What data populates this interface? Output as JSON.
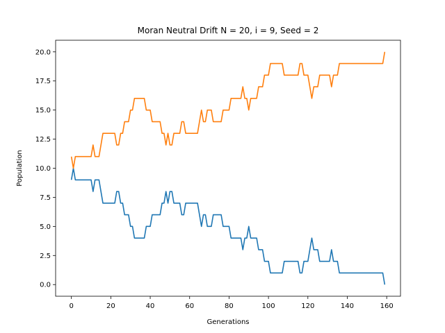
{
  "chart_data": {
    "type": "line",
    "title": "Moran Neutral Drift N = 20, i = 9, Seed = 2",
    "xlabel": "Generations",
    "ylabel": "Population",
    "xlim": [
      -8,
      167
    ],
    "ylim": [
      -1,
      21
    ],
    "xticks": [
      0,
      20,
      40,
      60,
      80,
      100,
      120,
      140,
      160
    ],
    "yticks": [
      0.0,
      2.5,
      5.0,
      7.5,
      10.0,
      12.5,
      15.0,
      17.5,
      20.0
    ],
    "xtick_labels": [
      "0",
      "20",
      "40",
      "60",
      "80",
      "100",
      "120",
      "140",
      "160"
    ],
    "ytick_labels": [
      "0.0",
      "2.5",
      "5.0",
      "7.5",
      "10.0",
      "12.5",
      "15.0",
      "17.5",
      "20.0"
    ],
    "grid": false,
    "series": [
      {
        "color": "#1f77b4",
        "points": [
          [
            0,
            9
          ],
          [
            1,
            10
          ],
          [
            2,
            9
          ],
          [
            10,
            9
          ],
          [
            11,
            8
          ],
          [
            12,
            9
          ],
          [
            14,
            9
          ],
          [
            16,
            7
          ],
          [
            22,
            7
          ],
          [
            23,
            8
          ],
          [
            24,
            8
          ],
          [
            25,
            7
          ],
          [
            26,
            7
          ],
          [
            27,
            6
          ],
          [
            29,
            6
          ],
          [
            30,
            5
          ],
          [
            31,
            5
          ],
          [
            32,
            4
          ],
          [
            37,
            4
          ],
          [
            38,
            5
          ],
          [
            40,
            5
          ],
          [
            41,
            6
          ],
          [
            45,
            6
          ],
          [
            46,
            7
          ],
          [
            47,
            7
          ],
          [
            48,
            8
          ],
          [
            49,
            7
          ],
          [
            50,
            8
          ],
          [
            51,
            8
          ],
          [
            52,
            7
          ],
          [
            55,
            7
          ],
          [
            56,
            6
          ],
          [
            57,
            6
          ],
          [
            58,
            7
          ],
          [
            64,
            7
          ],
          [
            65,
            6
          ],
          [
            66,
            5
          ],
          [
            67,
            6
          ],
          [
            68,
            6
          ],
          [
            69,
            5
          ],
          [
            71,
            5
          ],
          [
            72,
            6
          ],
          [
            76,
            6
          ],
          [
            77,
            5
          ],
          [
            80,
            5
          ],
          [
            81,
            4
          ],
          [
            86,
            4
          ],
          [
            87,
            3
          ],
          [
            88,
            4
          ],
          [
            89,
            4
          ],
          [
            90,
            5
          ],
          [
            91,
            4
          ],
          [
            94,
            4
          ],
          [
            95,
            3
          ],
          [
            97,
            3
          ],
          [
            98,
            2
          ],
          [
            100,
            2
          ],
          [
            101,
            1
          ],
          [
            107,
            1
          ],
          [
            108,
            2
          ],
          [
            115,
            2
          ],
          [
            116,
            1
          ],
          [
            117,
            1
          ],
          [
            118,
            2
          ],
          [
            120,
            2
          ],
          [
            121,
            3
          ],
          [
            122,
            4
          ],
          [
            123,
            3
          ],
          [
            125,
            3
          ],
          [
            126,
            2
          ],
          [
            131,
            2
          ],
          [
            132,
            3
          ],
          [
            133,
            2
          ],
          [
            135,
            2
          ],
          [
            136,
            1
          ],
          [
            158,
            1
          ],
          [
            159,
            0
          ]
        ]
      },
      {
        "color": "#ff7f0e",
        "points": [
          [
            0,
            11
          ],
          [
            1,
            10
          ],
          [
            2,
            11
          ],
          [
            10,
            11
          ],
          [
            11,
            12
          ],
          [
            12,
            11
          ],
          [
            14,
            11
          ],
          [
            16,
            13
          ],
          [
            22,
            13
          ],
          [
            23,
            12
          ],
          [
            24,
            12
          ],
          [
            25,
            13
          ],
          [
            26,
            13
          ],
          [
            27,
            14
          ],
          [
            29,
            14
          ],
          [
            30,
            15
          ],
          [
            31,
            15
          ],
          [
            32,
            16
          ],
          [
            37,
            16
          ],
          [
            38,
            15
          ],
          [
            40,
            15
          ],
          [
            41,
            14
          ],
          [
            45,
            14
          ],
          [
            46,
            13
          ],
          [
            47,
            13
          ],
          [
            48,
            12
          ],
          [
            49,
            13
          ],
          [
            50,
            12
          ],
          [
            51,
            12
          ],
          [
            52,
            13
          ],
          [
            55,
            13
          ],
          [
            56,
            14
          ],
          [
            57,
            14
          ],
          [
            58,
            13
          ],
          [
            64,
            13
          ],
          [
            65,
            14
          ],
          [
            66,
            15
          ],
          [
            67,
            14
          ],
          [
            68,
            14
          ],
          [
            69,
            15
          ],
          [
            71,
            15
          ],
          [
            72,
            14
          ],
          [
            76,
            14
          ],
          [
            77,
            15
          ],
          [
            80,
            15
          ],
          [
            81,
            16
          ],
          [
            86,
            16
          ],
          [
            87,
            17
          ],
          [
            88,
            16
          ],
          [
            89,
            16
          ],
          [
            90,
            15
          ],
          [
            91,
            16
          ],
          [
            94,
            16
          ],
          [
            95,
            17
          ],
          [
            97,
            17
          ],
          [
            98,
            18
          ],
          [
            100,
            18
          ],
          [
            101,
            19
          ],
          [
            107,
            19
          ],
          [
            108,
            18
          ],
          [
            115,
            18
          ],
          [
            116,
            19
          ],
          [
            117,
            19
          ],
          [
            118,
            18
          ],
          [
            120,
            18
          ],
          [
            121,
            17
          ],
          [
            122,
            16
          ],
          [
            123,
            17
          ],
          [
            125,
            17
          ],
          [
            126,
            18
          ],
          [
            131,
            18
          ],
          [
            132,
            17
          ],
          [
            133,
            18
          ],
          [
            135,
            18
          ],
          [
            136,
            19
          ],
          [
            158,
            19
          ],
          [
            159,
            20
          ]
        ]
      }
    ]
  }
}
